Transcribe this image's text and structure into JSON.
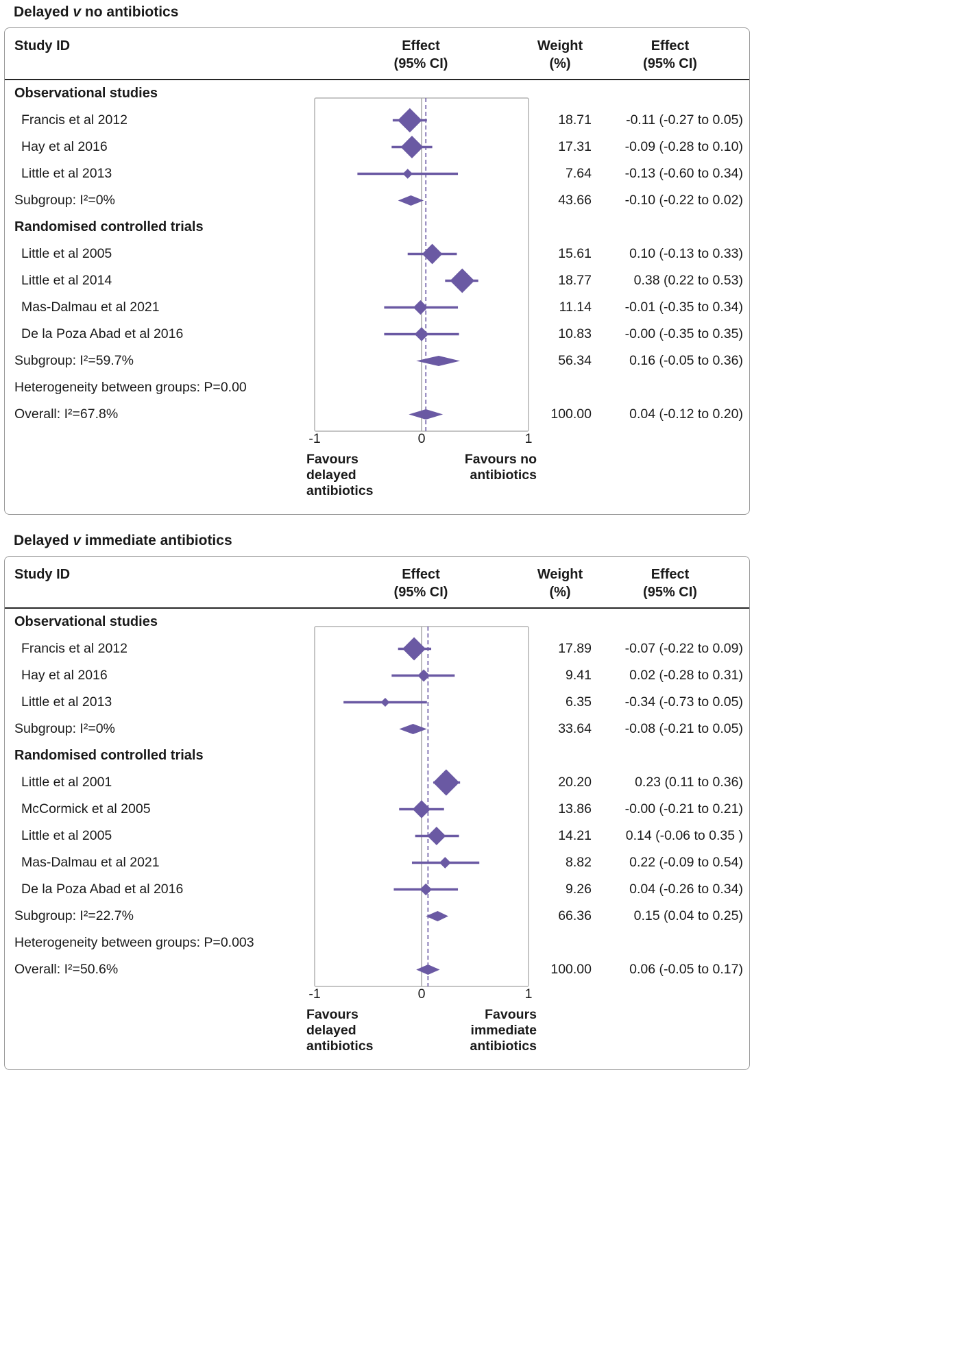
{
  "figure": {
    "background": "#ffffff",
    "accent_color": "#6a59a3",
    "text_color": "#1a1a1a",
    "frame_color": "#b2b2b2",
    "zero_line_color": "#a8a8a8",
    "box_border_color": "#999999"
  },
  "chart_data": [
    {
      "type": "forest",
      "title_text": "Delayed v no antibiotics",
      "title_parts": {
        "prefix": "Delayed ",
        "italic": "v",
        "suffix": " no antibiotics"
      },
      "header": {
        "study": "Study ID",
        "effect_plot": [
          "Effect",
          "(95% CI)"
        ],
        "weight": [
          "Weight",
          "(%)"
        ],
        "effect_text": [
          "Effect",
          "(95% CI)"
        ]
      },
      "axis": {
        "min": -1,
        "max": 1,
        "ticks": [
          "-1",
          "0",
          "1"
        ],
        "tick_values": [
          -1,
          0,
          1
        ],
        "zero_line": 0,
        "overall_dashed_line": 0.04
      },
      "favours_left": [
        "Favours",
        "delayed",
        "antibiotics"
      ],
      "favours_right": [
        "Favours no",
        "antibiotics"
      ],
      "rows": [
        {
          "kind": "group",
          "label": "Observational studies"
        },
        {
          "kind": "study",
          "label": "Francis et al 2012",
          "est": -0.11,
          "lo": -0.27,
          "hi": 0.05,
          "weight": 18.71,
          "weight_text": "18.71",
          "effect_text": "-0.11 (-0.27 to 0.05)"
        },
        {
          "kind": "study",
          "label": "Hay et al 2016",
          "est": -0.09,
          "lo": -0.28,
          "hi": 0.1,
          "weight": 17.31,
          "weight_text": "17.31",
          "effect_text": "-0.09 (-0.28 to 0.10)"
        },
        {
          "kind": "study",
          "label": "Little et al 2013",
          "est": -0.13,
          "lo": -0.6,
          "hi": 0.34,
          "weight": 7.64,
          "weight_text": "7.64",
          "effect_text": "-0.13 (-0.60 to 0.34)"
        },
        {
          "kind": "subgroup",
          "label": "Subgroup: I²=0%",
          "est": -0.1,
          "lo": -0.22,
          "hi": 0.02,
          "weight_text": "43.66",
          "effect_text": "-0.10 (-0.22 to 0.02)"
        },
        {
          "kind": "group",
          "label": "Randomised controlled trials"
        },
        {
          "kind": "study",
          "label": "Little et al 2005",
          "est": 0.1,
          "lo": -0.13,
          "hi": 0.33,
          "weight": 15.61,
          "weight_text": "15.61",
          "effect_text": "0.10 (-0.13 to 0.33)"
        },
        {
          "kind": "study",
          "label": "Little et al 2014",
          "est": 0.38,
          "lo": 0.22,
          "hi": 0.53,
          "weight": 18.77,
          "weight_text": "18.77",
          "effect_text": "0.38 (0.22 to 0.53)"
        },
        {
          "kind": "study",
          "label": "Mas-Dalmau et al 2021",
          "est": -0.01,
          "lo": -0.35,
          "hi": 0.34,
          "weight": 11.14,
          "weight_text": "11.14",
          "effect_text": "-0.01 (-0.35 to 0.34)"
        },
        {
          "kind": "study",
          "label": "De la Poza Abad et al 2016",
          "est": -0.0,
          "lo": -0.35,
          "hi": 0.35,
          "weight": 10.83,
          "weight_text": "10.83",
          "effect_text": "-0.00 (-0.35 to 0.35)"
        },
        {
          "kind": "subgroup",
          "label": "Subgroup: I²=59.7%",
          "est": 0.16,
          "lo": -0.05,
          "hi": 0.36,
          "weight_text": "56.34",
          "effect_text": "0.16 (-0.05 to 0.36)"
        },
        {
          "kind": "text",
          "label": "Heterogeneity between groups: P=0.00"
        },
        {
          "kind": "overall",
          "label": "Overall: I²=67.8%",
          "est": 0.04,
          "lo": -0.12,
          "hi": 0.2,
          "weight_text": "100.00",
          "effect_text": "0.04 (-0.12 to 0.20)"
        }
      ]
    },
    {
      "type": "forest",
      "title_text": "Delayed v immediate antibiotics",
      "title_parts": {
        "prefix": "Delayed ",
        "italic": "v",
        "suffix": " immediate antibiotics"
      },
      "header": {
        "study": "Study ID",
        "effect_plot": [
          "Effect",
          "(95% CI)"
        ],
        "weight": [
          "Weight",
          "(%)"
        ],
        "effect_text": [
          "Effect",
          "(95% CI)"
        ]
      },
      "axis": {
        "min": -1,
        "max": 1,
        "ticks": [
          "-1",
          "0",
          "1"
        ],
        "tick_values": [
          -1,
          0,
          1
        ],
        "zero_line": 0,
        "overall_dashed_line": 0.06
      },
      "favours_left": [
        "Favours",
        "delayed",
        "antibiotics"
      ],
      "favours_right": [
        "Favours",
        "immediate",
        "antibiotics"
      ],
      "rows": [
        {
          "kind": "group",
          "label": "Observational studies"
        },
        {
          "kind": "study",
          "label": "Francis et al 2012",
          "est": -0.07,
          "lo": -0.22,
          "hi": 0.09,
          "weight": 17.89,
          "weight_text": "17.89",
          "effect_text": "-0.07 (-0.22 to 0.09)"
        },
        {
          "kind": "study",
          "label": "Hay et al 2016",
          "est": 0.02,
          "lo": -0.28,
          "hi": 0.31,
          "weight": 9.41,
          "weight_text": "9.41",
          "effect_text": "0.02 (-0.28 to 0.31)"
        },
        {
          "kind": "study",
          "label": "Little et al 2013",
          "est": -0.34,
          "lo": -0.73,
          "hi": 0.05,
          "weight": 6.35,
          "weight_text": "6.35",
          "effect_text": "-0.34 (-0.73 to 0.05)"
        },
        {
          "kind": "subgroup",
          "label": "Subgroup: I²=0%",
          "est": -0.08,
          "lo": -0.21,
          "hi": 0.05,
          "weight_text": "33.64",
          "effect_text": "-0.08 (-0.21 to 0.05)"
        },
        {
          "kind": "group",
          "label": "Randomised controlled trials"
        },
        {
          "kind": "study",
          "label": "Little et al 2001",
          "est": 0.23,
          "lo": 0.11,
          "hi": 0.36,
          "weight": 20.2,
          "weight_text": "20.20",
          "effect_text": "0.23 (0.11 to 0.36)"
        },
        {
          "kind": "study",
          "label": "McCormick et al 2005",
          "est": -0.0,
          "lo": -0.21,
          "hi": 0.21,
          "weight": 13.86,
          "weight_text": "13.86",
          "effect_text": "-0.00 (-0.21 to 0.21)"
        },
        {
          "kind": "study",
          "label": "Little et al 2005",
          "est": 0.14,
          "lo": -0.06,
          "hi": 0.35,
          "weight": 14.21,
          "weight_text": "14.21",
          "effect_text": "0.14 (-0.06 to 0.35 )"
        },
        {
          "kind": "study",
          "label": "Mas-Dalmau et al 2021",
          "est": 0.22,
          "lo": -0.09,
          "hi": 0.54,
          "weight": 8.82,
          "weight_text": "8.82",
          "effect_text": "0.22 (-0.09 to 0.54)"
        },
        {
          "kind": "study",
          "label": "De la Poza Abad et al 2016",
          "est": 0.04,
          "lo": -0.26,
          "hi": 0.34,
          "weight": 9.26,
          "weight_text": "9.26",
          "effect_text": "0.04 (-0.26 to 0.34)"
        },
        {
          "kind": "subgroup",
          "label": "Subgroup: I²=22.7%",
          "est": 0.15,
          "lo": 0.04,
          "hi": 0.25,
          "weight_text": "66.36",
          "effect_text": "0.15 (0.04 to 0.25)"
        },
        {
          "kind": "text",
          "label": "Heterogeneity between groups: P=0.003"
        },
        {
          "kind": "overall",
          "label": "Overall: I²=50.6%",
          "est": 0.06,
          "lo": -0.05,
          "hi": 0.17,
          "weight_text": "100.00",
          "effect_text": "0.06 (-0.05 to 0.17)"
        }
      ]
    }
  ]
}
